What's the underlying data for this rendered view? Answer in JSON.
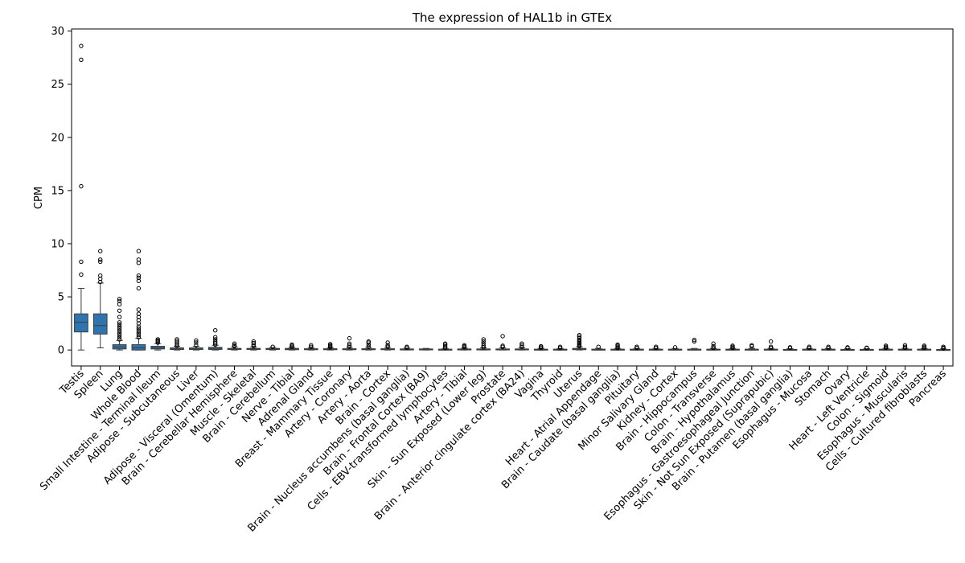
{
  "chart_data": {
    "type": "box",
    "title": "The expression of HAL1b in GTEx",
    "ylabel": "CPM",
    "xlabel": "",
    "ylim": [
      -1.5,
      30.2
    ],
    "yticks": [
      0,
      5,
      10,
      15,
      20,
      25,
      30
    ],
    "box_color": "#2f74ae",
    "categories": [
      {
        "name": "Testis",
        "min": 0.0,
        "q1": 1.7,
        "median": 2.6,
        "q3": 3.4,
        "max": 5.8,
        "outliers": [
          7.1,
          8.3,
          15.4,
          27.3,
          28.6
        ]
      },
      {
        "name": "Spleen",
        "min": 0.2,
        "q1": 1.5,
        "median": 2.3,
        "q3": 3.4,
        "max": 6.3,
        "outliers": [
          6.4,
          6.7,
          7.0,
          8.3,
          8.5,
          9.3
        ]
      },
      {
        "name": "Lung",
        "min": 0.0,
        "q1": 0.1,
        "median": 0.3,
        "q3": 0.5,
        "max": 0.9,
        "outliers": [
          1.0,
          1.2,
          1.4,
          1.6,
          1.8,
          2.0,
          2.2,
          2.4,
          2.6,
          3.1,
          3.7,
          4.3,
          4.6,
          4.8
        ]
      },
      {
        "name": "Whole Blood",
        "min": 0.0,
        "q1": 0.0,
        "median": 0.2,
        "q3": 0.5,
        "max": 1.1,
        "outliers": [
          1.2,
          1.4,
          1.6,
          1.8,
          2.0,
          2.2,
          2.5,
          2.8,
          3.1,
          3.4,
          3.8,
          5.8,
          6.5,
          6.8,
          7.0,
          8.2,
          8.5,
          9.3
        ]
      },
      {
        "name": "Small Intestine - Terminal Ileum",
        "min": 0.0,
        "q1": 0.1,
        "median": 0.2,
        "q3": 0.35,
        "max": 0.6,
        "outliers": [
          0.7,
          0.8,
          0.9,
          1.0
        ]
      },
      {
        "name": "Adipose - Subcutaneous",
        "min": 0.0,
        "q1": 0.05,
        "median": 0.1,
        "q3": 0.2,
        "max": 0.35,
        "outliers": [
          0.4,
          0.55,
          0.7,
          0.85,
          1.0
        ]
      },
      {
        "name": "Liver",
        "min": 0.0,
        "q1": 0.05,
        "median": 0.1,
        "q3": 0.2,
        "max": 0.35,
        "outliers": [
          0.45,
          0.7,
          0.9
        ]
      },
      {
        "name": "Adipose - Visceral (Omentum)",
        "min": 0.0,
        "q1": 0.05,
        "median": 0.15,
        "q3": 0.25,
        "max": 0.45,
        "outliers": [
          0.5,
          0.65,
          0.8,
          1.0,
          1.2,
          1.85
        ]
      },
      {
        "name": "Brain - Cerebellar Hemisphere",
        "min": 0.0,
        "q1": 0.05,
        "median": 0.1,
        "q3": 0.15,
        "max": 0.3,
        "outliers": [
          0.35,
          0.45,
          0.6
        ]
      },
      {
        "name": "Muscle - Skeletal",
        "min": 0.0,
        "q1": 0.05,
        "median": 0.1,
        "q3": 0.15,
        "max": 0.3,
        "outliers": [
          0.35,
          0.5,
          0.65,
          0.8
        ]
      },
      {
        "name": "Brain - Cerebellum",
        "min": 0.0,
        "q1": 0.05,
        "median": 0.1,
        "q3": 0.15,
        "max": 0.25,
        "outliers": [
          0.3
        ]
      },
      {
        "name": "Nerve - Tibial",
        "min": 0.0,
        "q1": 0.03,
        "median": 0.08,
        "q3": 0.15,
        "max": 0.25,
        "outliers": [
          0.3,
          0.4,
          0.5
        ]
      },
      {
        "name": "Adrenal Gland",
        "min": 0.0,
        "q1": 0.03,
        "median": 0.06,
        "q3": 0.12,
        "max": 0.22,
        "outliers": [
          0.3,
          0.45
        ]
      },
      {
        "name": "Breast - Mammary Tissue",
        "min": 0.0,
        "q1": 0.03,
        "median": 0.06,
        "q3": 0.12,
        "max": 0.22,
        "outliers": [
          0.25,
          0.35,
          0.45,
          0.55
        ]
      },
      {
        "name": "Artery - Coronary",
        "min": 0.0,
        "q1": 0.03,
        "median": 0.06,
        "q3": 0.12,
        "max": 0.25,
        "outliers": [
          0.3,
          0.45,
          0.6,
          1.1
        ]
      },
      {
        "name": "Artery - Aorta",
        "min": 0.0,
        "q1": 0.03,
        "median": 0.06,
        "q3": 0.12,
        "max": 0.25,
        "outliers": [
          0.3,
          0.5,
          0.7,
          0.8
        ]
      },
      {
        "name": "Brain - Cortex",
        "min": 0.0,
        "q1": 0.03,
        "median": 0.06,
        "q3": 0.12,
        "max": 0.25,
        "outliers": [
          0.3,
          0.45,
          0.7
        ]
      },
      {
        "name": "Brain - Nucleus accumbens (basal ganglia)",
        "min": 0.0,
        "q1": 0.03,
        "median": 0.05,
        "q3": 0.1,
        "max": 0.18,
        "outliers": [
          0.22,
          0.3
        ]
      },
      {
        "name": "Brain - Frontal Cortex (BA9)",
        "min": 0.0,
        "q1": 0.03,
        "median": 0.05,
        "q3": 0.1,
        "max": 0.15,
        "outliers": []
      },
      {
        "name": "Cells - EBV-transformed lymphocytes",
        "min": 0.0,
        "q1": 0.02,
        "median": 0.04,
        "q3": 0.08,
        "max": 0.15,
        "outliers": [
          0.2,
          0.35,
          0.5,
          0.6
        ]
      },
      {
        "name": "Artery - Tibial",
        "min": 0.0,
        "q1": 0.02,
        "median": 0.05,
        "q3": 0.1,
        "max": 0.18,
        "outliers": [
          0.25,
          0.35,
          0.45
        ]
      },
      {
        "name": "Skin - Sun Exposed (Lower leg)",
        "min": 0.0,
        "q1": 0.02,
        "median": 0.05,
        "q3": 0.1,
        "max": 0.2,
        "outliers": [
          0.25,
          0.4,
          0.6,
          0.8,
          1.0
        ]
      },
      {
        "name": "Prostate",
        "min": 0.0,
        "q1": 0.02,
        "median": 0.05,
        "q3": 0.1,
        "max": 0.2,
        "outliers": [
          0.3,
          0.4,
          1.3
        ]
      },
      {
        "name": "Brain - Anterior cingulate cortex (BA24)",
        "min": 0.0,
        "q1": 0.02,
        "median": 0.05,
        "q3": 0.1,
        "max": 0.2,
        "outliers": [
          0.3,
          0.45,
          0.6
        ]
      },
      {
        "name": "Vagina",
        "min": 0.0,
        "q1": 0.02,
        "median": 0.04,
        "q3": 0.08,
        "max": 0.15,
        "outliers": [
          0.2,
          0.3,
          0.35
        ]
      },
      {
        "name": "Thyroid",
        "min": 0.0,
        "q1": 0.02,
        "median": 0.04,
        "q3": 0.08,
        "max": 0.15,
        "outliers": [
          0.2,
          0.3
        ]
      },
      {
        "name": "Uterus",
        "min": 0.0,
        "q1": 0.03,
        "median": 0.08,
        "q3": 0.15,
        "max": 0.3,
        "outliers": [
          0.35,
          0.45,
          0.55,
          0.65,
          0.75,
          0.85,
          0.95,
          1.1,
          1.25,
          1.4
        ]
      },
      {
        "name": "Heart - Atrial Appendage",
        "min": 0.0,
        "q1": 0.02,
        "median": 0.04,
        "q3": 0.08,
        "max": 0.15,
        "outliers": [
          0.3
        ]
      },
      {
        "name": "Brain - Caudate (basal ganglia)",
        "min": 0.0,
        "q1": 0.02,
        "median": 0.04,
        "q3": 0.08,
        "max": 0.15,
        "outliers": [
          0.2,
          0.3,
          0.4,
          0.5
        ]
      },
      {
        "name": "Pituitary",
        "min": 0.0,
        "q1": 0.02,
        "median": 0.04,
        "q3": 0.08,
        "max": 0.15,
        "outliers": [
          0.2,
          0.3
        ]
      },
      {
        "name": "Minor Salivary Gland",
        "min": 0.0,
        "q1": 0.02,
        "median": 0.04,
        "q3": 0.08,
        "max": 0.15,
        "outliers": [
          0.2,
          0.3
        ]
      },
      {
        "name": "Kidney - Cortex",
        "min": 0.0,
        "q1": 0.02,
        "median": 0.04,
        "q3": 0.08,
        "max": 0.15,
        "outliers": [
          0.25
        ]
      },
      {
        "name": "Brain - Hippocampus",
        "min": 0.0,
        "q1": 0.02,
        "median": 0.04,
        "q3": 0.08,
        "max": 0.15,
        "outliers": [
          0.8,
          0.95
        ]
      },
      {
        "name": "Colon - Transverse",
        "min": 0.0,
        "q1": 0.02,
        "median": 0.04,
        "q3": 0.08,
        "max": 0.15,
        "outliers": [
          0.2,
          0.35,
          0.6
        ]
      },
      {
        "name": "Brain - Hypothalamus",
        "min": 0.0,
        "q1": 0.02,
        "median": 0.04,
        "q3": 0.08,
        "max": 0.15,
        "outliers": [
          0.2,
          0.3,
          0.4
        ]
      },
      {
        "name": "Esophagus - Gastroesophageal Junction",
        "min": 0.0,
        "q1": 0.02,
        "median": 0.04,
        "q3": 0.08,
        "max": 0.15,
        "outliers": [
          0.35,
          0.45
        ]
      },
      {
        "name": "Skin - Not Sun Exposed (Suprapubic)",
        "min": 0.0,
        "q1": 0.02,
        "median": 0.04,
        "q3": 0.08,
        "max": 0.15,
        "outliers": [
          0.2,
          0.3,
          0.8
        ]
      },
      {
        "name": "Brain - Putamen (basal ganglia)",
        "min": 0.0,
        "q1": 0.02,
        "median": 0.03,
        "q3": 0.06,
        "max": 0.12,
        "outliers": [
          0.2,
          0.25
        ]
      },
      {
        "name": "Esophagus - Mucosa",
        "min": 0.0,
        "q1": 0.02,
        "median": 0.04,
        "q3": 0.08,
        "max": 0.15,
        "outliers": [
          0.2,
          0.3
        ]
      },
      {
        "name": "Stomach",
        "min": 0.0,
        "q1": 0.02,
        "median": 0.04,
        "q3": 0.08,
        "max": 0.15,
        "outliers": [
          0.2,
          0.3
        ]
      },
      {
        "name": "Ovary",
        "min": 0.0,
        "q1": 0.02,
        "median": 0.03,
        "q3": 0.06,
        "max": 0.12,
        "outliers": [
          0.2,
          0.25
        ]
      },
      {
        "name": "Heart - Left Ventricle",
        "min": 0.0,
        "q1": 0.02,
        "median": 0.03,
        "q3": 0.06,
        "max": 0.12,
        "outliers": [
          0.18,
          0.22
        ]
      },
      {
        "name": "Colon - Sigmoid",
        "min": 0.0,
        "q1": 0.02,
        "median": 0.04,
        "q3": 0.08,
        "max": 0.15,
        "outliers": [
          0.2,
          0.3,
          0.4
        ]
      },
      {
        "name": "Esophagus - Muscularis",
        "min": 0.0,
        "q1": 0.02,
        "median": 0.04,
        "q3": 0.08,
        "max": 0.15,
        "outliers": [
          0.2,
          0.3,
          0.45
        ]
      },
      {
        "name": "Cells - Cultured fibroblasts",
        "min": 0.0,
        "q1": 0.02,
        "median": 0.04,
        "q3": 0.08,
        "max": 0.15,
        "outliers": [
          0.2,
          0.3,
          0.4
        ]
      },
      {
        "name": "Pancreas",
        "min": 0.0,
        "q1": 0.01,
        "median": 0.02,
        "q3": 0.05,
        "max": 0.1,
        "outliers": [
          0.15,
          0.2,
          0.3
        ]
      }
    ]
  }
}
